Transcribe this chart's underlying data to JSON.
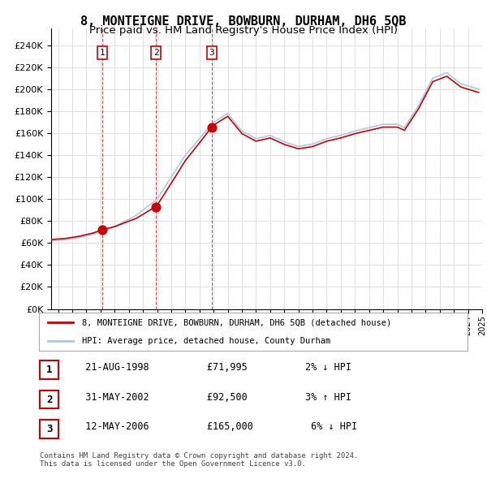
{
  "title": "8, MONTEIGNE DRIVE, BOWBURN, DURHAM, DH6 5QB",
  "subtitle": "Price paid vs. HM Land Registry's House Price Index (HPI)",
  "title_fontsize": 11,
  "subtitle_fontsize": 9.5,
  "property_label": "8, MONTEIGNE DRIVE, BOWBURN, DURHAM, DH6 5QB (detached house)",
  "hpi_label": "HPI: Average price, detached house, County Durham",
  "property_color": "#cc0000",
  "hpi_color": "#aac8e8",
  "sale_marker_color": "#cc0000",
  "sale_dot_size": 60,
  "yticks": [
    0,
    20000,
    40000,
    60000,
    80000,
    100000,
    120000,
    140000,
    160000,
    180000,
    200000,
    220000,
    240000
  ],
  "ylim": [
    0,
    255000
  ],
  "sales": [
    {
      "date": "21-AUG-1998",
      "price": 71995,
      "label": "1",
      "hpi_pct": "2%",
      "hpi_dir": "↓"
    },
    {
      "date": "31-MAY-2002",
      "price": 92500,
      "label": "2",
      "hpi_pct": "3%",
      "hpi_dir": "↑"
    },
    {
      "date": "12-MAY-2006",
      "price": 165000,
      "label": "3",
      "hpi_pct": "6%",
      "hpi_dir": "↓"
    }
  ],
  "footnote": "Contains HM Land Registry data © Crown copyright and database right 2024.\nThis data is licensed under the Open Government Licence v3.0.",
  "background_color": "#ffffff",
  "grid_color": "#e0e0e0"
}
